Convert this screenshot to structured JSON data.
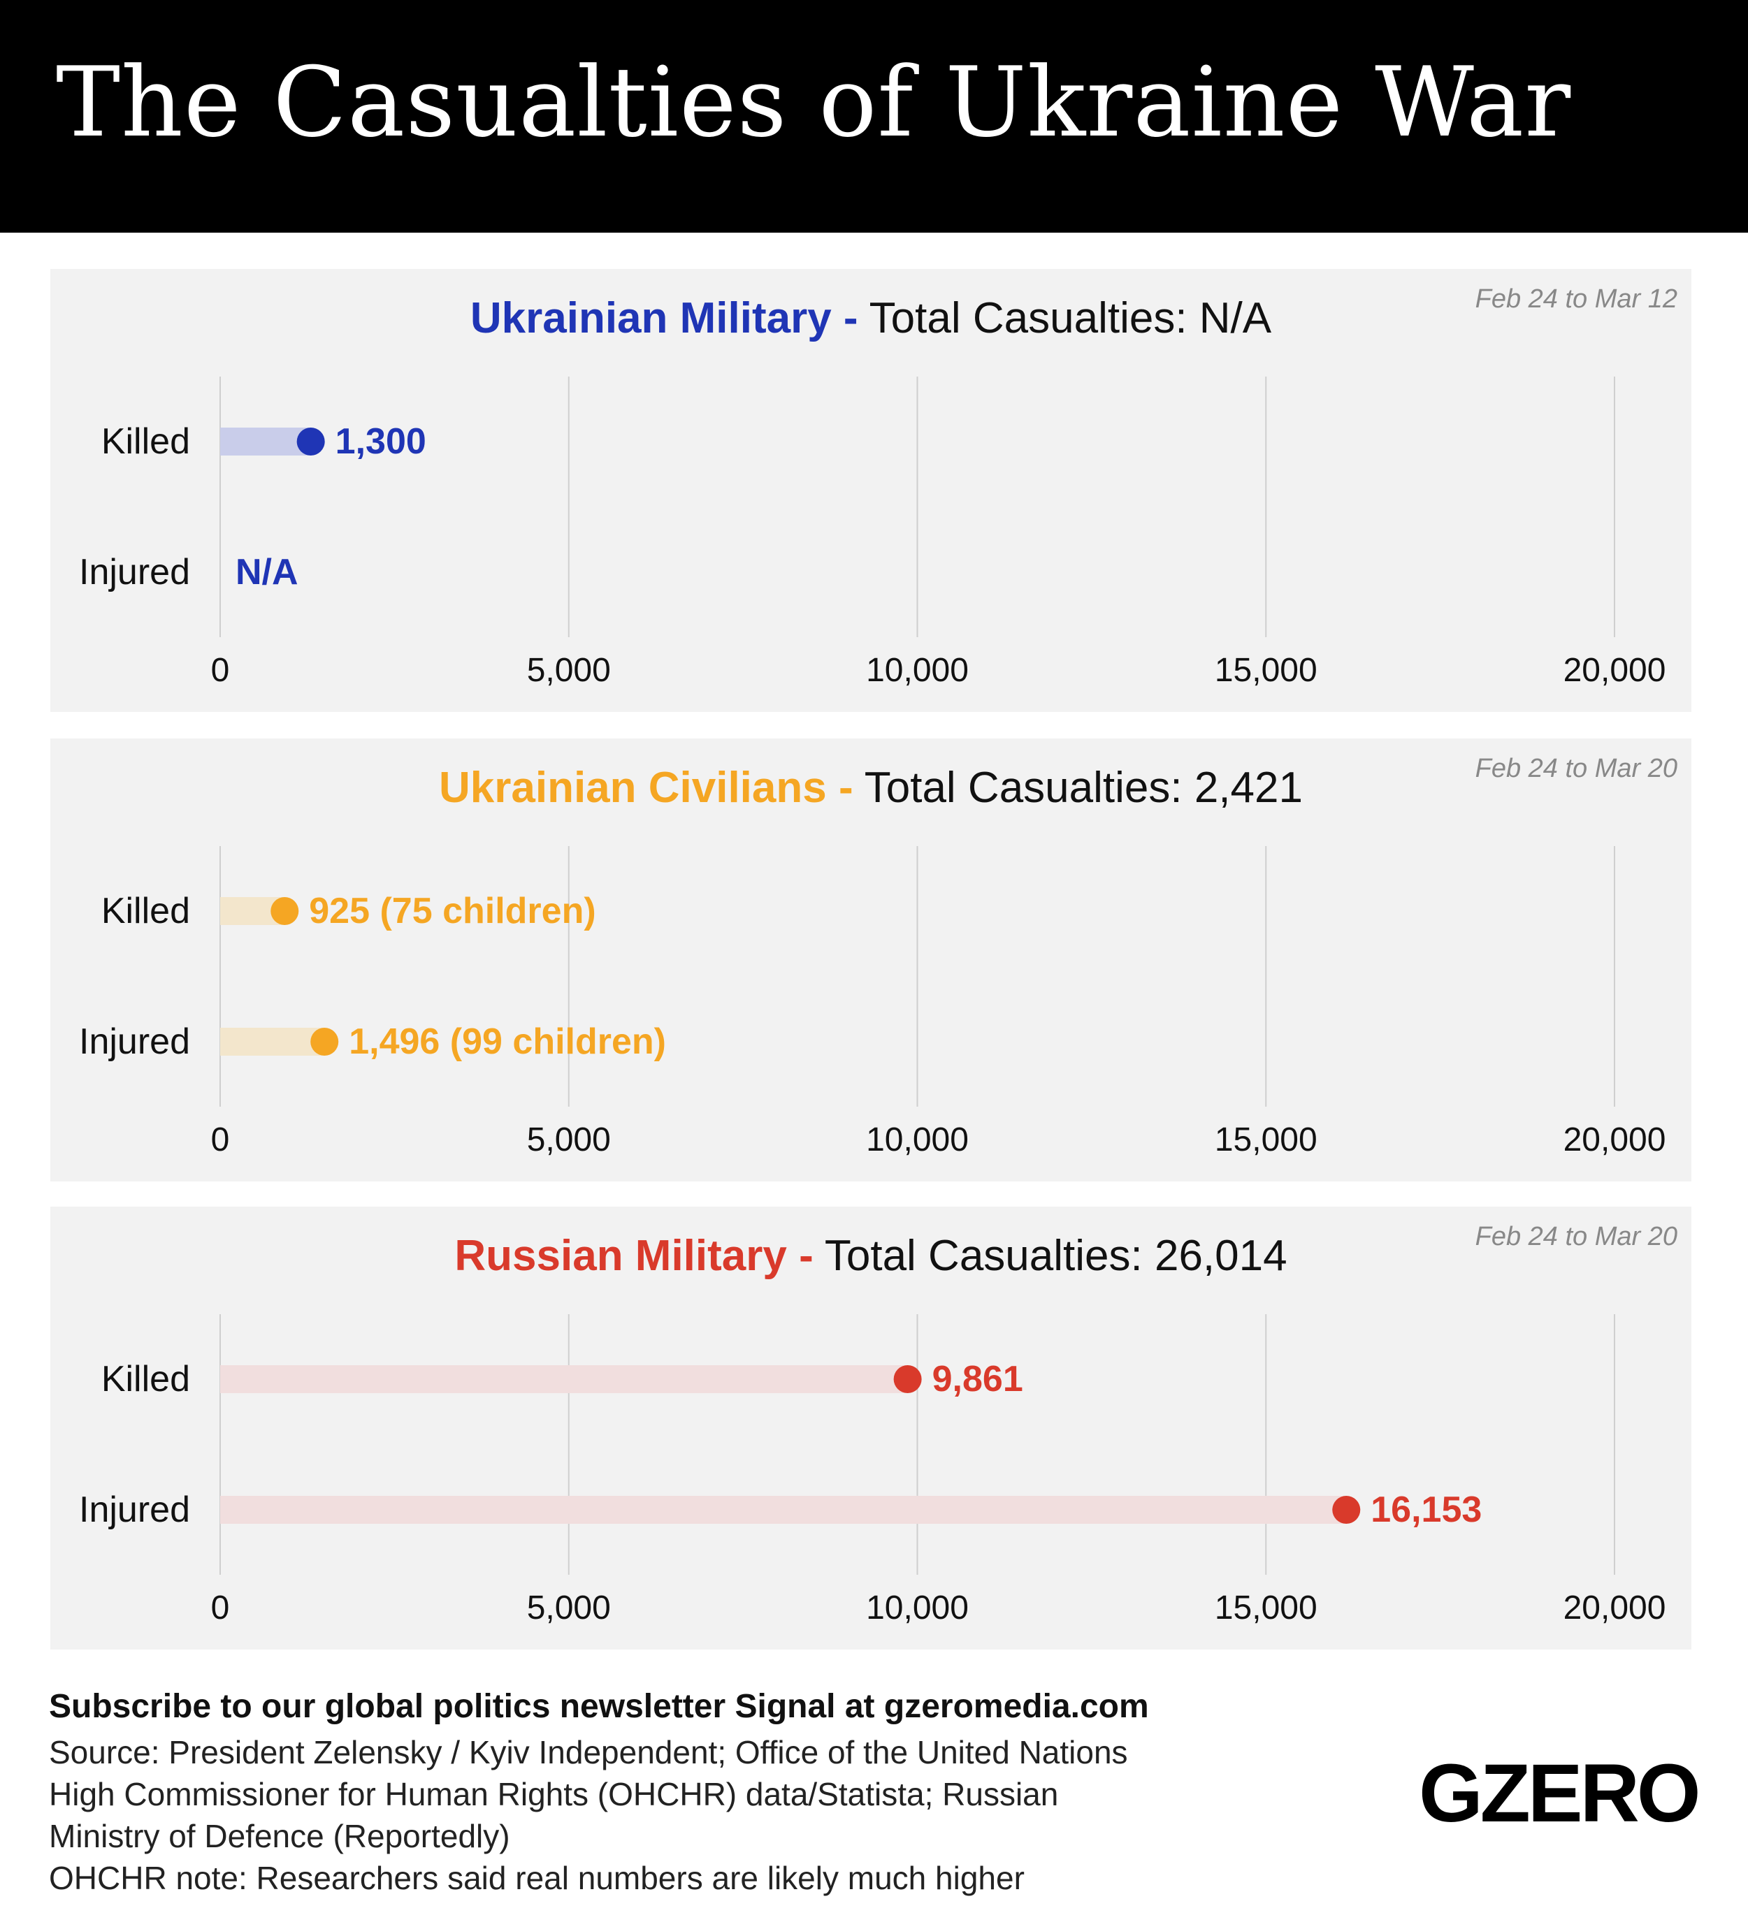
{
  "header": {
    "title": "The Casualties of Ukraine War"
  },
  "colors": {
    "military_ua": "#1f35b5",
    "civilians_ua": "#f5a623",
    "military_ru": "#d93a2b"
  },
  "chart_data": [
    {
      "type": "bar",
      "subtitle_accent": "Ukrainian Military -",
      "subtitle_rest": " Total Casualties: N/A",
      "date_range": "Feb 24 to Mar 12",
      "categories": [
        "Killed",
        "Injured"
      ],
      "values": [
        1300,
        null
      ],
      "data_labels": [
        "1,300",
        "N/A"
      ],
      "xlim": [
        0,
        20000
      ],
      "ticks": [
        0,
        5000,
        10000,
        15000,
        20000
      ],
      "tick_labels": [
        "0",
        "5,000",
        "10,000",
        "15,000",
        "20,000"
      ],
      "color": "#1f35b5",
      "bar_color": "#c9cdea"
    },
    {
      "type": "bar",
      "subtitle_accent": "Ukrainian Civilians -",
      "subtitle_rest": " Total Casualties: 2,421",
      "date_range": "Feb 24 to Mar 20",
      "categories": [
        "Killed",
        "Injured"
      ],
      "values": [
        925,
        1496
      ],
      "data_labels": [
        "925 (75 children)",
        "1,496 (99 children)"
      ],
      "xlim": [
        0,
        20000
      ],
      "ticks": [
        0,
        5000,
        10000,
        15000,
        20000
      ],
      "tick_labels": [
        "0",
        "5,000",
        "10,000",
        "15,000",
        "20,000"
      ],
      "color": "#f5a623",
      "bar_color": "#f3e6cc"
    },
    {
      "type": "bar",
      "subtitle_accent": "Russian Military -",
      "subtitle_rest": " Total Casualties: 26,014",
      "date_range": "Feb 24 to Mar 20",
      "categories": [
        "Killed",
        "Injured"
      ],
      "values": [
        9861,
        16153
      ],
      "data_labels": [
        "9,861",
        "16,153"
      ],
      "xlim": [
        0,
        20000
      ],
      "ticks": [
        0,
        5000,
        10000,
        15000,
        20000
      ],
      "tick_labels": [
        "0",
        "5,000",
        "10,000",
        "15,000",
        "20,000"
      ],
      "color": "#d93a2b",
      "bar_color": "#f1dede"
    }
  ],
  "footer": {
    "subscribe": "Subscribe to our global politics newsletter Signal at gzeromedia.com",
    "source_line1": "Source: President Zelensky / Kyiv Independent; Office of the United Nations",
    "source_line2": "High Commissioner for Human Rights (OHCHR) data/Statista; Russian",
    "source_line3": "Ministry of Defence (Reportedly)",
    "note": "OHCHR note: Researchers said real numbers are likely much higher",
    "logo": "GZERO"
  }
}
